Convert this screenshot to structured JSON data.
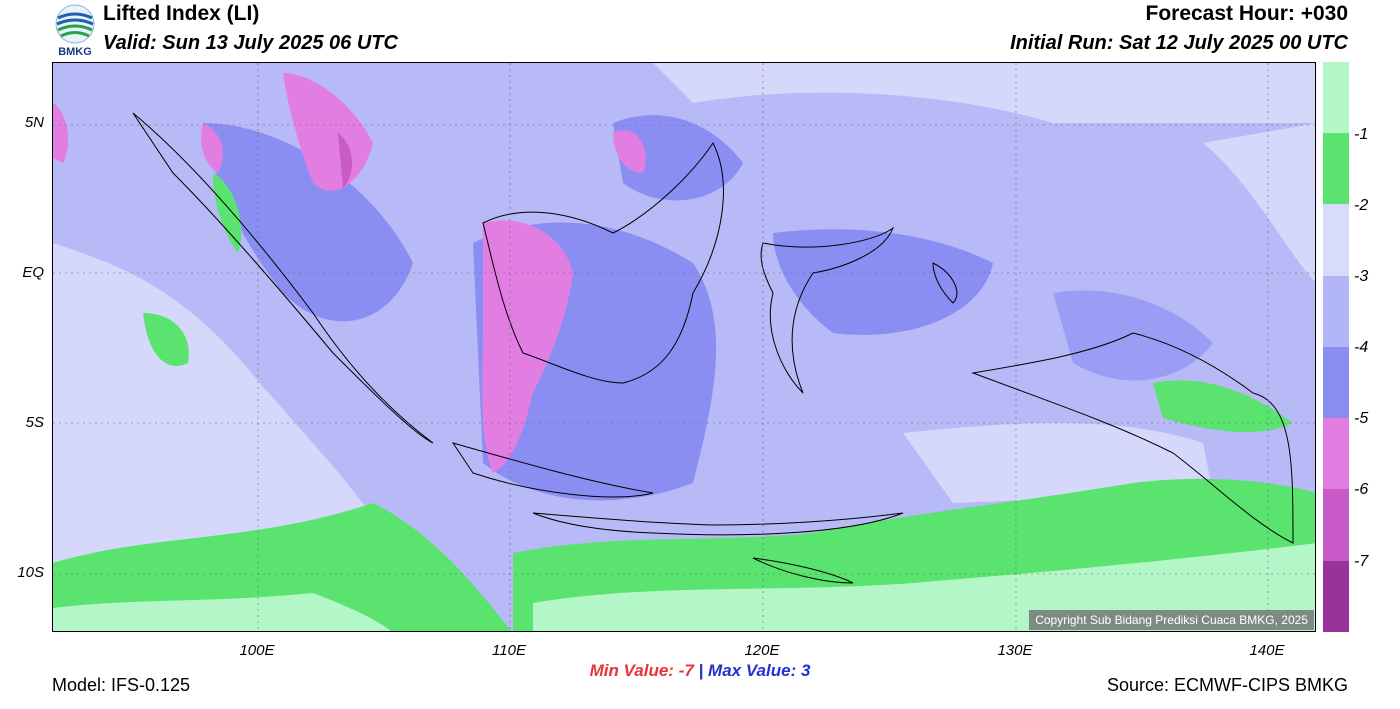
{
  "header": {
    "title": "Lifted Index (LI)",
    "valid": "Valid: Sun 13 July 2025 06 UTC",
    "forecast_hour": "Forecast Hour: +030",
    "initial_run": "Initial Run: Sat 12 July 2025 00 UTC",
    "logo_text": "BMKG"
  },
  "map": {
    "lat_labels": [
      "5N",
      "EQ",
      "5S",
      "10S"
    ],
    "lon_labels": [
      "100E",
      "110E",
      "120E",
      "130E",
      "140E"
    ],
    "copyright": "Copyright Sub Bidang Prediksi Cuaca BMKG, 2025"
  },
  "colorbar": {
    "labels": [
      "-1",
      "-2",
      "-3",
      "-4",
      "-5",
      "-6",
      "-7"
    ],
    "colors": [
      "#b3f7c9",
      "#5ae36e",
      "#d8dbf9",
      "#b2b5f6",
      "#8a8ef2",
      "#e27ee2",
      "#c95bc9",
      "#993399"
    ]
  },
  "footer": {
    "min_label": "Min Value:",
    "min_value": "-7",
    "separator": "|",
    "max_label": "Max Value:",
    "max_value": "3",
    "model": "Model: IFS-0.125",
    "source": "Source: ECMWF-CIPS BMKG"
  }
}
